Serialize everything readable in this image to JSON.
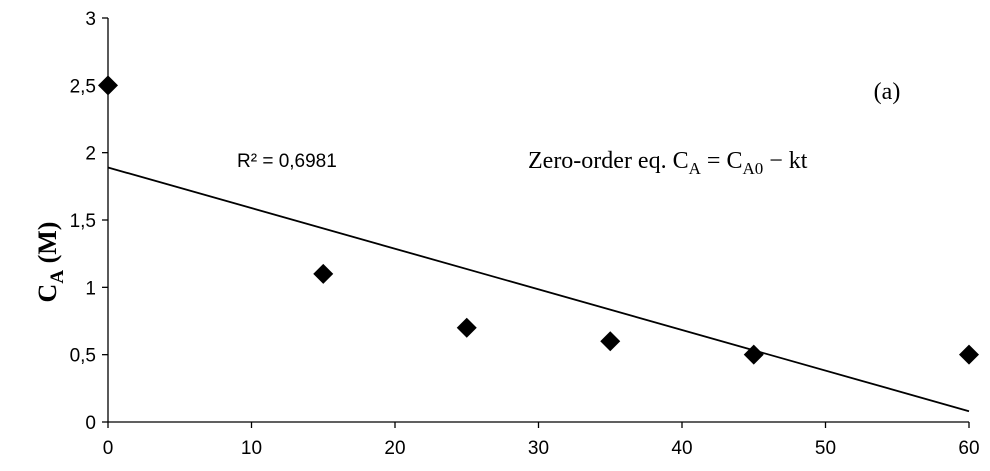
{
  "chart_data": {
    "type": "scatter",
    "x": [
      0,
      15,
      25,
      35,
      45,
      60
    ],
    "y": [
      2.5,
      1.1,
      0.7,
      0.6,
      0.5,
      0.5
    ],
    "xlim": [
      0,
      60
    ],
    "ylim": [
      0,
      3
    ],
    "x_ticks": [
      0,
      10,
      20,
      30,
      40,
      50,
      60
    ],
    "x_tick_labels": [
      "0",
      "10",
      "20",
      "30",
      "40",
      "50",
      "60"
    ],
    "y_ticks": [
      0,
      0.5,
      1,
      1.5,
      2,
      2.5,
      3
    ],
    "y_tick_labels": [
      "0",
      "0,5",
      "1",
      "1,5",
      "2",
      "2,5",
      "3"
    ],
    "ylabel": {
      "main": "C",
      "sub": "A",
      "unit": " (M)"
    },
    "marker": "diamond",
    "marker_color": "#000000",
    "grid": false,
    "trendline": {
      "type": "linear",
      "x": [
        0,
        60
      ],
      "y": [
        1.89,
        0.08
      ],
      "r2_label": "R² = 0,6981"
    },
    "annotations": {
      "panel_label": "(a)",
      "equation": {
        "prefix": "Zero-order eq. ",
        "lhs_main": "C",
        "lhs_sub": "A",
        "eq_sign": " = ",
        "rhs_main": "C",
        "rhs_sub": "A0",
        "rhs_tail": " − kt"
      }
    }
  }
}
